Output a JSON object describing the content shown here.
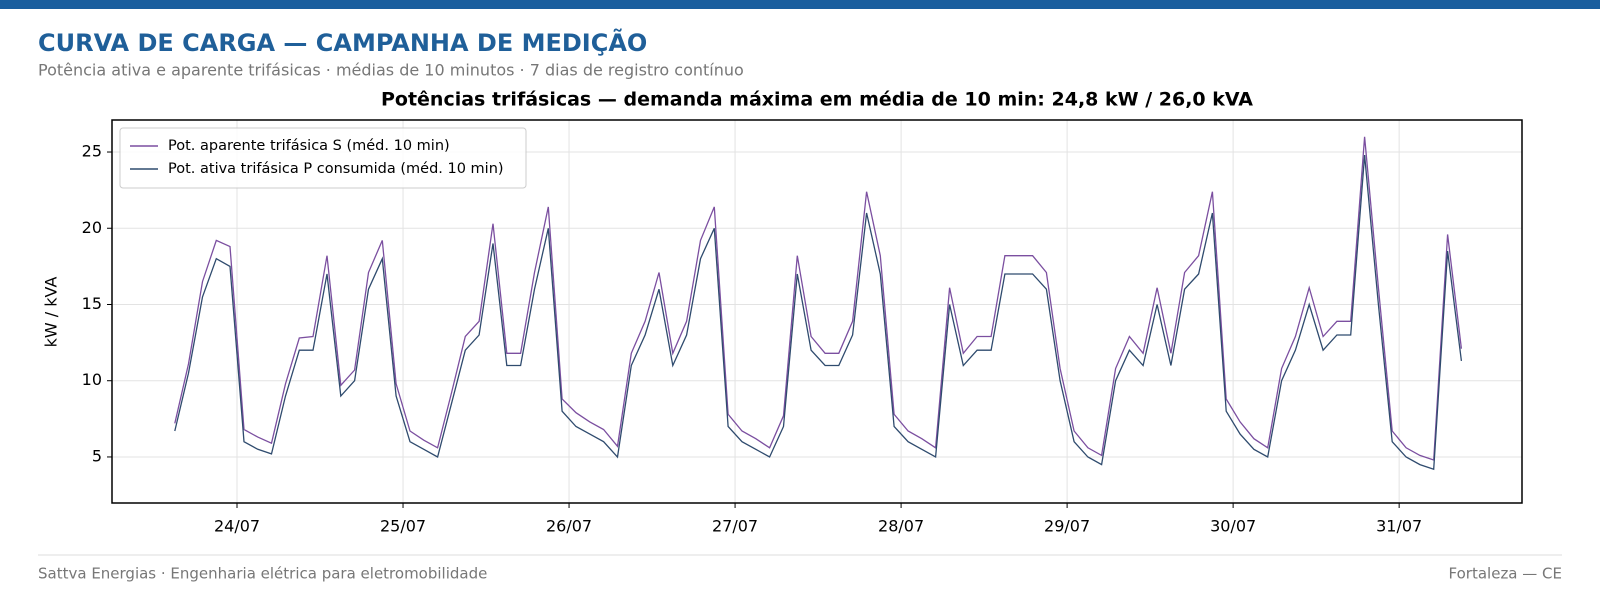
{
  "header": {
    "title": "CURVA DE CARGA — CAMPANHA DE MEDIÇÃO",
    "subtitle": "Potência ativa e aparente trifásicas · médias de 10 minutos · 7 dias de registro contínuo"
  },
  "chart_data": {
    "type": "line",
    "title": "Potências trifásicas — demanda máxima em média de 10 min: 24,8 kW / 26,0 kVA",
    "ylabel": "kW / kVA",
    "x": [
      23.625,
      23.708,
      23.792,
      23.875,
      23.958,
      24.042,
      24.125,
      24.208,
      24.292,
      24.375,
      24.458,
      24.542,
      24.625,
      24.708,
      24.792,
      24.875,
      24.958,
      25.042,
      25.125,
      25.208,
      25.292,
      25.375,
      25.458,
      25.542,
      25.625,
      25.708,
      25.792,
      25.875,
      25.958,
      26.042,
      26.125,
      26.208,
      26.292,
      26.375,
      26.458,
      26.542,
      26.625,
      26.708,
      26.792,
      26.875,
      26.958,
      27.042,
      27.125,
      27.208,
      27.292,
      27.375,
      27.458,
      27.542,
      27.625,
      27.708,
      27.792,
      27.875,
      27.958,
      28.042,
      28.125,
      28.208,
      28.292,
      28.375,
      28.458,
      28.542,
      28.625,
      28.708,
      28.792,
      28.875,
      28.958,
      29.042,
      29.125,
      29.208,
      29.292,
      29.375,
      29.458,
      29.542,
      29.625,
      29.708,
      29.792,
      29.875,
      29.958,
      30.042,
      30.125,
      30.208,
      30.292,
      30.375,
      30.458,
      30.542,
      30.625,
      30.708,
      30.792,
      30.875,
      30.958,
      31.042,
      31.125,
      31.208,
      31.292,
      31.375
    ],
    "series": [
      {
        "name": "Pot. aparente trifásica S (méd. 10 min)",
        "color": "#7b4fa0",
        "values": [
          7.2,
          11.1,
          16.5,
          19.2,
          18.8,
          6.8,
          6.3,
          5.9,
          9.8,
          12.8,
          12.9,
          18.2,
          9.7,
          10.7,
          17.1,
          19.2,
          9.8,
          6.7,
          6.1,
          5.6,
          9.2,
          12.9,
          13.9,
          20.3,
          11.8,
          11.8,
          17.1,
          21.4,
          8.8,
          7.9,
          7.3,
          6.8,
          5.7,
          11.8,
          13.9,
          17.1,
          11.8,
          13.9,
          19.2,
          21.4,
          7.8,
          6.7,
          6.2,
          5.6,
          7.7,
          18.2,
          12.9,
          11.8,
          11.8,
          13.9,
          22.4,
          18.2,
          7.8,
          6.7,
          6.2,
          5.6,
          16.1,
          11.8,
          12.9,
          12.9,
          18.2,
          18.2,
          18.2,
          17.1,
          10.8,
          6.7,
          5.6,
          5.1,
          10.8,
          12.9,
          11.8,
          16.1,
          11.8,
          17.1,
          18.2,
          22.4,
          8.8,
          7.3,
          6.2,
          5.6,
          10.8,
          12.9,
          16.1,
          12.9,
          13.9,
          13.9,
          26.0,
          16.1,
          6.7,
          5.6,
          5.1,
          4.8,
          19.6,
          12.1
        ]
      },
      {
        "name": "Pot. ativa trifásica P consumida (méd. 10 min)",
        "color": "#2f4b6e",
        "values": [
          6.7,
          10.5,
          15.5,
          18,
          17.5,
          6,
          5.5,
          5.2,
          9,
          12,
          12,
          17,
          9,
          10,
          16,
          18,
          9,
          6,
          5.5,
          5,
          8.5,
          12,
          13,
          19,
          11,
          11,
          16,
          20,
          8,
          7,
          6.5,
          6,
          5,
          11,
          13,
          16,
          11,
          13,
          18,
          20,
          7,
          6,
          5.5,
          5,
          7,
          17,
          12,
          11,
          11,
          13,
          21,
          17,
          7,
          6,
          5.5,
          5,
          15,
          11,
          12,
          12,
          17,
          17,
          17,
          16,
          10,
          6,
          5,
          4.5,
          10,
          12,
          11,
          15,
          11,
          16,
          17,
          21,
          8,
          6.5,
          5.5,
          5,
          10,
          12,
          15,
          12,
          13,
          13,
          24.8,
          15,
          6,
          5,
          4.5,
          4.2,
          18.5,
          11.3
        ]
      }
    ],
    "xlim": [
      23.247,
      31.74
    ],
    "xticks": [
      {
        "value": 24,
        "label": "24/07"
      },
      {
        "value": 25,
        "label": "25/07"
      },
      {
        "value": 26,
        "label": "26/07"
      },
      {
        "value": 27,
        "label": "27/07"
      },
      {
        "value": 28,
        "label": "28/07"
      },
      {
        "value": 29,
        "label": "29/07"
      },
      {
        "value": 30,
        "label": "30/07"
      },
      {
        "value": 31,
        "label": "31/07"
      }
    ],
    "ylim": [
      1.98,
      27.1
    ],
    "yticks": [
      5,
      10,
      15,
      20,
      25
    ],
    "grid": true,
    "legend": "upper left"
  },
  "footer": {
    "left": "Sattva Energias · Engenharia elétrica para eletromobilidade",
    "right": "Fortaleza — CE"
  }
}
